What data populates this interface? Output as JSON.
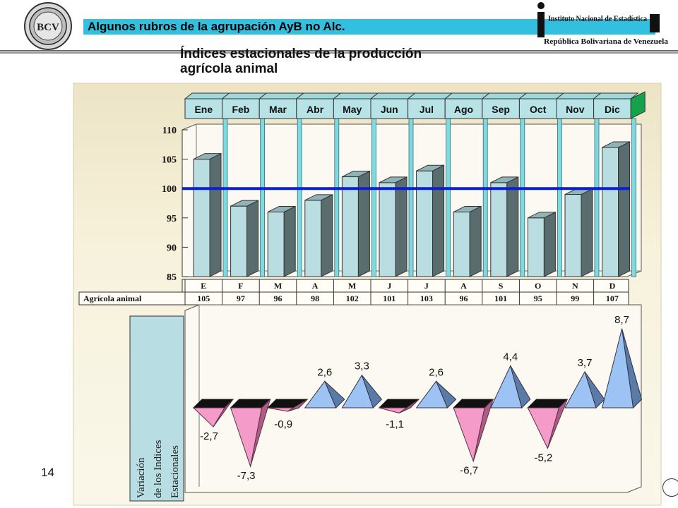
{
  "header": {
    "bcv_logo_text": "BCV",
    "title": "Algunos rubros de la agrupación AyB no Alc.",
    "subtitle_line1": "Índices estacionales de la producción",
    "subtitle_line2": "agrícola animal",
    "ine_logo": {
      "line1": "Instituto Nacional de Estadística",
      "line2": "República Bolivariana de Venezuela"
    }
  },
  "page_number": "14",
  "colors": {
    "title_bar": "#33c0e0",
    "panel_bg": "#f7f2dc",
    "bar_front": "#b9dde0",
    "bar_side": "#5a6d6e",
    "reference_line": "#0a1fd0",
    "month_box": "#b7e2e6",
    "positive_pyramid": "#9dc3f5",
    "negative_pyramid": "#f49bc9",
    "pyramid_top": "#111111"
  },
  "chart_data": [
    {
      "type": "bar",
      "categories": [
        "Ene",
        "Feb",
        "Mar",
        "Abr",
        "May",
        "Jun",
        "Jul",
        "Ago",
        "Sep",
        "Oct",
        "Nov",
        "Dic"
      ],
      "table_letters": [
        "E",
        "F",
        "M",
        "A",
        "M",
        "J",
        "J",
        "A",
        "S",
        "O",
        "N",
        "D"
      ],
      "series": [
        {
          "name": "Agrícola animal",
          "values": [
            105,
            97,
            96,
            98,
            102,
            101,
            103,
            96,
            101,
            95,
            99,
            107
          ]
        }
      ],
      "y_ticks": [
        "85",
        "90",
        "95",
        "100",
        "105",
        "110"
      ],
      "ylim": [
        85,
        110
      ],
      "reference_line": 100
    },
    {
      "type": "bar",
      "categories": [
        "Ene",
        "Feb",
        "Mar",
        "Abr",
        "May",
        "Jun",
        "Jul",
        "Ago",
        "Sep",
        "Oct",
        "Nov",
        "Dic"
      ],
      "labels": [
        "-2,7",
        "-7,3",
        "-0,9",
        "2,6",
        "3,3",
        "-1,1",
        "2,6",
        "-6,7",
        "4,4",
        "-5,2",
        "3,7",
        "8,7"
      ],
      "values": [
        -2.7,
        -7.3,
        -0.9,
        2.6,
        3.3,
        -1.1,
        2.6,
        -6.7,
        4.4,
        -5.2,
        3.7,
        8.7
      ],
      "ylabel_lines": [
        "Variación",
        "de los Indices",
        "Estacionales"
      ]
    }
  ]
}
